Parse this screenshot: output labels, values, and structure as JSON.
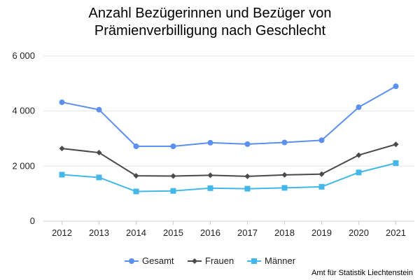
{
  "chart_data": {
    "type": "line",
    "title_line1": "Anzahl Bezügerinnen und Bezüger von",
    "title_line2": "Prämienverbilligung nach Geschlecht",
    "xlabel": "",
    "ylabel": "",
    "ylim": [
      0,
      6000
    ],
    "yticks": [
      0,
      2000,
      4000,
      6000
    ],
    "ytick_labels": [
      "0",
      "2 000",
      "4 000",
      "6 000"
    ],
    "grid": true,
    "legend_position": "bottom",
    "categories": [
      "2012",
      "2013",
      "2014",
      "2015",
      "2016",
      "2017",
      "2018",
      "2019",
      "2020",
      "2021"
    ],
    "series": [
      {
        "name": "Gesamt",
        "color": "#5b8ff0",
        "marker": "circle",
        "values": [
          4320,
          4050,
          2720,
          2720,
          2850,
          2800,
          2860,
          2940,
          4140,
          4900
        ]
      },
      {
        "name": "Frauen",
        "color": "#4a4a4a",
        "marker": "diamond",
        "values": [
          2640,
          2490,
          1650,
          1640,
          1670,
          1630,
          1680,
          1710,
          2400,
          2790
        ]
      },
      {
        "name": "Männer",
        "color": "#43b7e8",
        "marker": "square",
        "values": [
          1690,
          1590,
          1080,
          1100,
          1200,
          1180,
          1210,
          1250,
          1770,
          2110
        ]
      }
    ],
    "source": "Amt für Statistik Liechtenstein"
  }
}
